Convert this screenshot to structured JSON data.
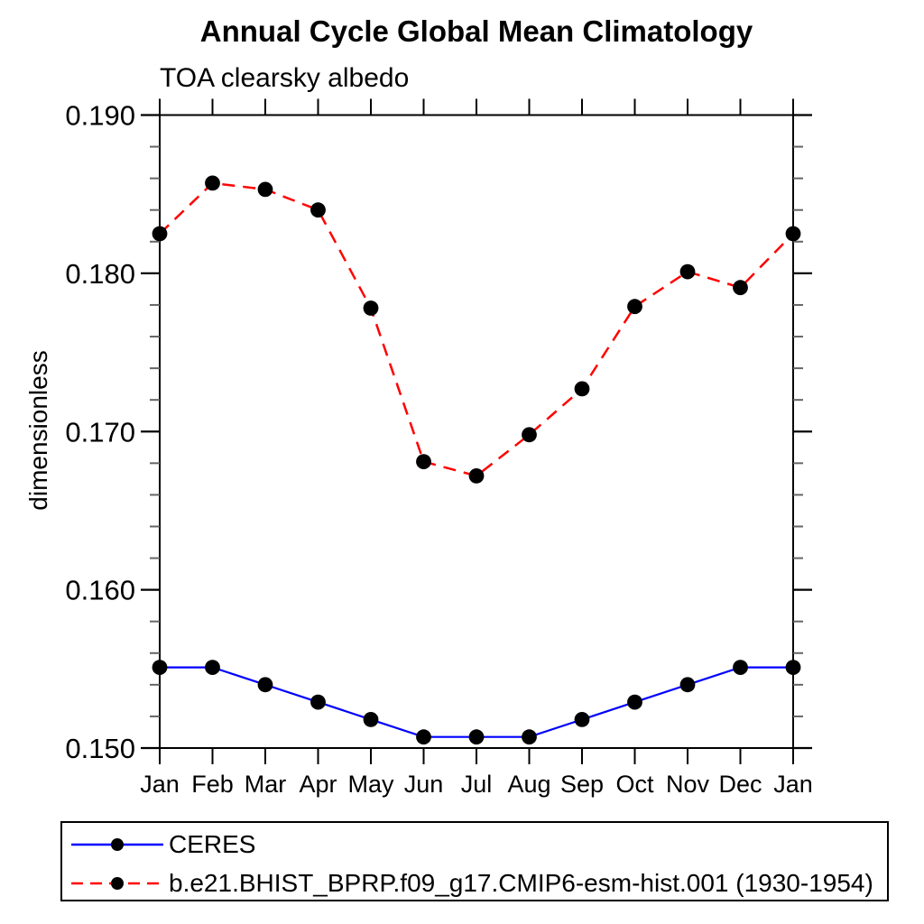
{
  "chart": {
    "title": "Annual Cycle Global Mean Climatology",
    "subtitle": "TOA clearsky albedo",
    "ylabel": "dimensionless"
  },
  "chart_data": {
    "type": "line",
    "categories": [
      "Jan",
      "Feb",
      "Mar",
      "Apr",
      "May",
      "Jun",
      "Jul",
      "Aug",
      "Sep",
      "Oct",
      "Nov",
      "Dec",
      "Jan"
    ],
    "series": [
      {
        "name": "CERES",
        "color": "#0000ff",
        "line_style": "solid",
        "marker": "filled-circle",
        "marker_color": "#000000",
        "values": [
          0.1551,
          0.1551,
          0.154,
          0.1529,
          0.1518,
          0.1507,
          0.1507,
          0.1507,
          0.1518,
          0.1529,
          0.154,
          0.1551,
          0.1551
        ]
      },
      {
        "name": "b.e21.BHIST_BPRP.f09_g17.CMIP6-esm-hist.001 (1930-1954)",
        "color": "#ff0000",
        "line_style": "dashed",
        "marker": "filled-circle",
        "marker_color": "#000000",
        "values": [
          0.1825,
          0.1857,
          0.1853,
          0.184,
          0.1778,
          0.1681,
          0.1672,
          0.1698,
          0.1727,
          0.1779,
          0.1801,
          0.1791,
          0.1825
        ]
      }
    ],
    "ylim": [
      0.15,
      0.19
    ],
    "yticks_major": [
      0.15,
      0.16,
      0.17,
      0.18,
      0.19
    ],
    "ytick_labels": [
      "0.150",
      "0.160",
      "0.170",
      "0.180",
      "0.190"
    ],
    "ytick_minor_step": 0.002,
    "xlabel": "",
    "grid": false,
    "legend_position": "bottom",
    "axis_color": "#000000",
    "minor_tick_color": "#666666"
  }
}
